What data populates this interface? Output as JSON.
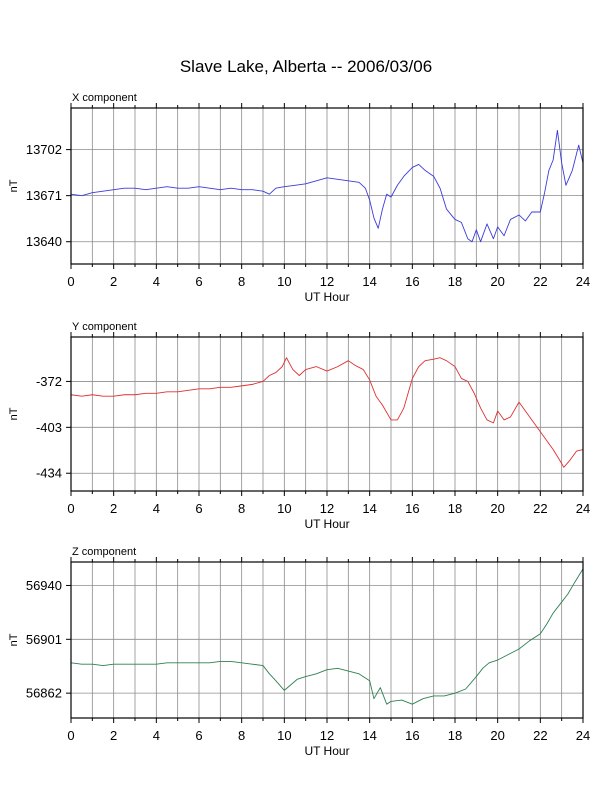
{
  "title": "Slave Lake, Alberta -- 2006/03/06",
  "chart_data": [
    {
      "type": "line",
      "title": "X component",
      "xlabel": "UT Hour",
      "ylabel": "nT",
      "xlim": [
        0,
        24
      ],
      "ylim": [
        13625,
        13730
      ],
      "xticks": [
        0,
        2,
        4,
        6,
        8,
        10,
        12,
        14,
        16,
        18,
        20,
        22,
        24
      ],
      "yticks": [
        13640,
        13671,
        13702
      ],
      "grid": true,
      "color": "#3b3bdd",
      "series": [
        {
          "x": [
            0,
            0.5,
            1,
            1.5,
            2,
            2.5,
            3,
            3.5,
            4,
            4.5,
            5,
            5.5,
            6,
            6.5,
            7,
            7.5,
            8,
            8.5,
            9,
            9.3,
            9.6,
            10,
            10.5,
            11,
            11.5,
            12,
            12.5,
            13,
            13.5,
            13.8,
            14,
            14.2,
            14.4,
            14.6,
            14.8,
            15,
            15.3,
            15.6,
            16,
            16.3,
            16.6,
            17,
            17.3,
            17.6,
            18,
            18.3,
            18.6,
            18.8,
            19,
            19.2,
            19.5,
            19.8,
            20,
            20.3,
            20.6,
            21,
            21.3,
            21.6,
            22,
            22.2,
            22.4,
            22.6,
            22.8,
            23,
            23.2,
            23.5,
            23.8,
            24
          ],
          "y": [
            13672,
            13671,
            13673,
            13674,
            13675,
            13676,
            13676,
            13675,
            13676,
            13677,
            13676,
            13676,
            13677,
            13676,
            13675,
            13676,
            13675,
            13675,
            13674,
            13672,
            13676,
            13677,
            13678,
            13679,
            13681,
            13683,
            13682,
            13681,
            13680,
            13676,
            13668,
            13656,
            13649,
            13662,
            13672,
            13670,
            13678,
            13684,
            13690,
            13692,
            13688,
            13684,
            13676,
            13662,
            13655,
            13653,
            13642,
            13640,
            13648,
            13640,
            13652,
            13642,
            13650,
            13644,
            13655,
            13658,
            13654,
            13660,
            13660,
            13673,
            13688,
            13695,
            13715,
            13693,
            13678,
            13688,
            13705,
            13693
          ]
        }
      ]
    },
    {
      "type": "line",
      "title": "Y component",
      "xlabel": "UT Hour",
      "ylabel": "nT",
      "xlim": [
        0,
        24
      ],
      "ylim": [
        -446,
        -342
      ],
      "xticks": [
        0,
        2,
        4,
        6,
        8,
        10,
        12,
        14,
        16,
        18,
        20,
        22,
        24
      ],
      "yticks": [
        -372,
        -403,
        -434
      ],
      "grid": true,
      "color": "#e03030",
      "series": [
        {
          "x": [
            0,
            0.5,
            1,
            1.5,
            2,
            2.5,
            3,
            3.5,
            4,
            4.5,
            5,
            5.5,
            6,
            6.5,
            7,
            7.5,
            8,
            8.5,
            9,
            9.3,
            9.6,
            9.9,
            10.1,
            10.4,
            10.7,
            11,
            11.5,
            12,
            12.5,
            13,
            13.3,
            13.7,
            14,
            14.3,
            14.6,
            15,
            15.3,
            15.6,
            16,
            16.3,
            16.6,
            17,
            17.3,
            17.6,
            18,
            18.3,
            18.6,
            18.9,
            19.2,
            19.5,
            19.8,
            20,
            20.3,
            20.6,
            21,
            21.3,
            21.6,
            22,
            22.3,
            22.6,
            22.9,
            23.1,
            23.4,
            23.7,
            24
          ],
          "y": [
            -381,
            -382,
            -381,
            -382,
            -382,
            -381,
            -381,
            -380,
            -380,
            -379,
            -379,
            -378,
            -377,
            -377,
            -376,
            -376,
            -375,
            -374,
            -372,
            -368,
            -366,
            -362,
            -356,
            -364,
            -368,
            -364,
            -362,
            -365,
            -362,
            -358,
            -361,
            -364,
            -371,
            -382,
            -388,
            -398,
            -398,
            -390,
            -370,
            -362,
            -358,
            -357,
            -356,
            -358,
            -362,
            -370,
            -372,
            -380,
            -390,
            -398,
            -400,
            -392,
            -398,
            -396,
            -386,
            -392,
            -398,
            -406,
            -412,
            -418,
            -425,
            -430,
            -425,
            -419,
            -418
          ]
        }
      ]
    },
    {
      "type": "line",
      "title": "Z component",
      "xlabel": "UT Hour",
      "ylabel": "nT",
      "xlim": [
        0,
        24
      ],
      "ylim": [
        56844,
        56957
      ],
      "xticks": [
        0,
        2,
        4,
        6,
        8,
        10,
        12,
        14,
        16,
        18,
        20,
        22,
        24
      ],
      "yticks": [
        56862,
        56901,
        56940
      ],
      "grid": true,
      "color": "#2e8050",
      "series": [
        {
          "x": [
            0,
            0.5,
            1,
            1.5,
            2,
            2.5,
            3,
            3.5,
            4,
            4.5,
            5,
            5.5,
            6,
            6.5,
            7,
            7.5,
            8,
            8.5,
            9,
            9.3,
            9.6,
            10,
            10.3,
            10.6,
            11,
            11.5,
            12,
            12.5,
            13,
            13.5,
            14,
            14.2,
            14.5,
            14.8,
            15,
            15.5,
            16,
            16.5,
            17,
            17.5,
            18,
            18.5,
            19,
            19.3,
            19.6,
            20,
            20.5,
            21,
            21.5,
            22,
            22.3,
            22.6,
            23,
            23.3,
            23.6,
            24
          ],
          "y": [
            56884,
            56883,
            56883,
            56882,
            56883,
            56883,
            56883,
            56883,
            56883,
            56884,
            56884,
            56884,
            56884,
            56884,
            56885,
            56885,
            56884,
            56883,
            56882,
            56876,
            56871,
            56864,
            56868,
            56872,
            56874,
            56876,
            56879,
            56880,
            56878,
            56876,
            56871,
            56858,
            56866,
            56854,
            56856,
            56857,
            56854,
            56858,
            56860,
            56860,
            56862,
            56865,
            56874,
            56880,
            56884,
            56886,
            56890,
            56894,
            56900,
            56905,
            56912,
            56920,
            56928,
            56934,
            56942,
            56952
          ]
        }
      ]
    }
  ]
}
